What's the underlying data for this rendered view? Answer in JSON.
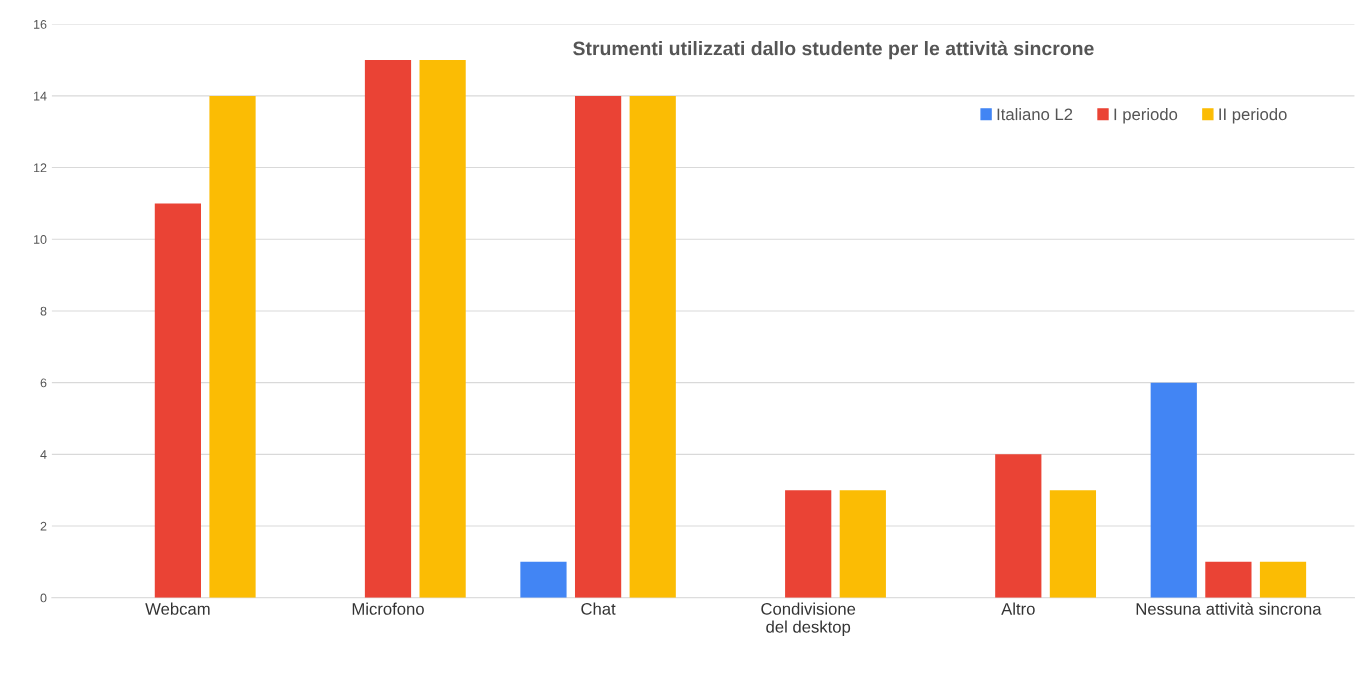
{
  "chart_data": {
    "type": "bar",
    "title": "Strumenti utilizzati dallo studente per le attività sincrone",
    "categories": [
      "Webcam",
      "Microfono",
      "Chat",
      "Condivisione\ndel desktop",
      "Altro",
      "Nessuna attività sincrona"
    ],
    "series": [
      {
        "name": "Italiano L2",
        "color": "#4285f4",
        "values": [
          0,
          0,
          1,
          0,
          0,
          6
        ]
      },
      {
        "name": "I periodo",
        "color": "#ea4335",
        "values": [
          11,
          15,
          14,
          3,
          4,
          1
        ]
      },
      {
        "name": "II periodo",
        "color": "#fbbc04",
        "values": [
          14,
          15,
          14,
          3,
          3,
          1
        ]
      }
    ],
    "ylim": [
      0,
      16
    ],
    "yticks": [
      0,
      2,
      4,
      6,
      8,
      10,
      12,
      14,
      16
    ],
    "grid": "y",
    "legend": "top right"
  }
}
